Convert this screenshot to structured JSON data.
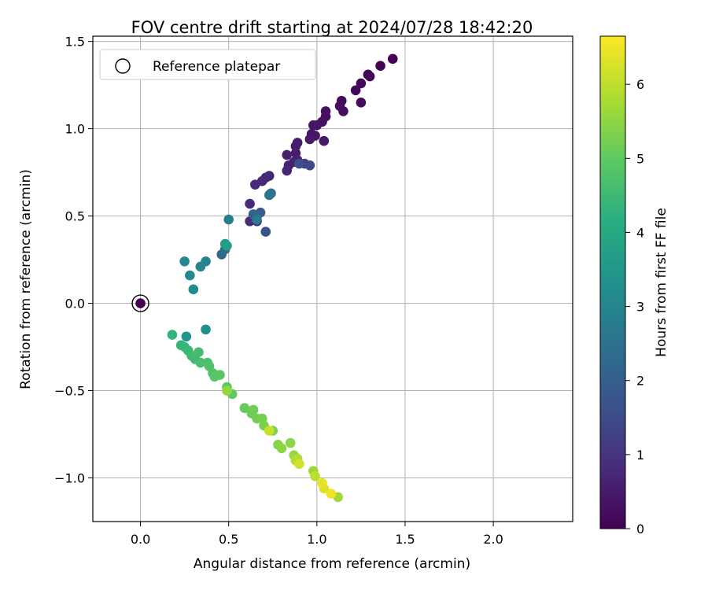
{
  "chart_data": {
    "type": "scatter",
    "title": "FOV centre drift starting at 2024/07/28 18:42:20",
    "xlabel": "Angular distance from reference (arcmin)",
    "ylabel": "Rotation from reference (arcmin)",
    "xlim": [
      -0.27,
      2.45
    ],
    "ylim": [
      -1.25,
      1.53
    ],
    "x_ticks": [
      0.0,
      0.5,
      1.0,
      1.5,
      2.0
    ],
    "x_tick_labels": [
      "0.0",
      "0.5",
      "1.0",
      "1.5",
      "2.0"
    ],
    "y_ticks": [
      -1.0,
      -0.5,
      0.0,
      0.5,
      1.0,
      1.5
    ],
    "y_tick_labels": [
      "−1.0",
      "−0.5",
      "0.0",
      "0.5",
      "1.0",
      "1.5"
    ],
    "grid": true,
    "legend": {
      "placement": "top-left",
      "entries": [
        "Reference platepar"
      ]
    },
    "reference_point": {
      "x": 0.0,
      "y": 0.0
    },
    "colorbar": {
      "label": "Hours from first FF file",
      "colormap": "viridis",
      "range": [
        0,
        6.65
      ],
      "ticks": [
        0,
        1,
        2,
        3,
        4,
        5,
        6
      ],
      "tick_labels": [
        "0",
        "1",
        "2",
        "3",
        "4",
        "5",
        "6"
      ]
    },
    "points": [
      {
        "x": 1.43,
        "y": 1.4,
        "t": 0.02
      },
      {
        "x": 1.36,
        "y": 1.36,
        "t": 0.05
      },
      {
        "x": 1.3,
        "y": 1.3,
        "t": 0.08
      },
      {
        "x": 1.29,
        "y": 1.31,
        "t": 0.1
      },
      {
        "x": 1.25,
        "y": 1.26,
        "t": 0.12
      },
      {
        "x": 1.22,
        "y": 1.22,
        "t": 0.15
      },
      {
        "x": 1.25,
        "y": 1.15,
        "t": 0.18
      },
      {
        "x": 1.14,
        "y": 1.16,
        "t": 0.2
      },
      {
        "x": 1.13,
        "y": 1.13,
        "t": 0.22
      },
      {
        "x": 1.15,
        "y": 1.1,
        "t": 0.25
      },
      {
        "x": 1.05,
        "y": 1.1,
        "t": 0.28
      },
      {
        "x": 1.05,
        "y": 1.07,
        "t": 0.3
      },
      {
        "x": 1.03,
        "y": 1.04,
        "t": 0.32
      },
      {
        "x": 1.0,
        "y": 1.02,
        "t": 0.35
      },
      {
        "x": 0.98,
        "y": 1.02,
        "t": 0.38
      },
      {
        "x": 0.97,
        "y": 0.97,
        "t": 0.4
      },
      {
        "x": 0.99,
        "y": 0.96,
        "t": 0.42
      },
      {
        "x": 0.96,
        "y": 0.94,
        "t": 0.45
      },
      {
        "x": 1.04,
        "y": 0.93,
        "t": 0.48
      },
      {
        "x": 0.89,
        "y": 0.92,
        "t": 0.5
      },
      {
        "x": 0.88,
        "y": 0.9,
        "t": 0.52
      },
      {
        "x": 0.88,
        "y": 0.86,
        "t": 0.55
      },
      {
        "x": 0.83,
        "y": 0.85,
        "t": 0.58
      },
      {
        "x": 0.87,
        "y": 0.81,
        "t": 0.6
      },
      {
        "x": 0.89,
        "y": 0.82,
        "t": 0.62
      },
      {
        "x": 0.84,
        "y": 0.79,
        "t": 0.65
      },
      {
        "x": 0.83,
        "y": 0.76,
        "t": 0.68
      },
      {
        "x": 0.73,
        "y": 0.73,
        "t": 0.7
      },
      {
        "x": 0.71,
        "y": 0.72,
        "t": 0.72
      },
      {
        "x": 0.69,
        "y": 0.7,
        "t": 0.75
      },
      {
        "x": 0.65,
        "y": 0.68,
        "t": 0.78
      },
      {
        "x": 0.62,
        "y": 0.57,
        "t": 0.8
      },
      {
        "x": 0.62,
        "y": 0.47,
        "t": 0.85
      },
      {
        "x": 0.66,
        "y": 0.47,
        "t": 0.9
      },
      {
        "x": 0.93,
        "y": 0.8,
        "t": 1.3
      },
      {
        "x": 0.96,
        "y": 0.79,
        "t": 1.45
      },
      {
        "x": 0.9,
        "y": 0.8,
        "t": 1.6
      },
      {
        "x": 0.71,
        "y": 0.41,
        "t": 1.7
      },
      {
        "x": 0.68,
        "y": 0.52,
        "t": 1.85
      },
      {
        "x": 0.64,
        "y": 0.51,
        "t": 2.0
      },
      {
        "x": 0.66,
        "y": 0.5,
        "t": 2.1
      },
      {
        "x": 0.46,
        "y": 0.28,
        "t": 2.2
      },
      {
        "x": 0.48,
        "y": 0.31,
        "t": 2.35
      },
      {
        "x": 0.74,
        "y": 0.63,
        "t": 2.5
      },
      {
        "x": 0.73,
        "y": 0.62,
        "t": 2.6
      },
      {
        "x": 0.66,
        "y": 0.48,
        "t": 2.7
      },
      {
        "x": 0.5,
        "y": 0.48,
        "t": 2.8
      },
      {
        "x": 0.37,
        "y": 0.24,
        "t": 2.95
      },
      {
        "x": 0.34,
        "y": 0.21,
        "t": 3.0
      },
      {
        "x": 0.25,
        "y": 0.24,
        "t": 3.05
      },
      {
        "x": 0.28,
        "y": 0.16,
        "t": 3.1
      },
      {
        "x": 0.3,
        "y": 0.08,
        "t": 3.2
      },
      {
        "x": 0.37,
        "y": -0.15,
        "t": 3.3
      },
      {
        "x": 0.26,
        "y": -0.19,
        "t": 3.4
      },
      {
        "x": 0.48,
        "y": 0.34,
        "t": 3.55
      },
      {
        "x": 0.49,
        "y": 0.33,
        "t": 3.7
      },
      {
        "x": 0.18,
        "y": -0.18,
        "t": 4.3
      },
      {
        "x": 0.23,
        "y": -0.24,
        "t": 4.35
      },
      {
        "x": 0.25,
        "y": -0.25,
        "t": 4.4
      },
      {
        "x": 0.27,
        "y": -0.27,
        "t": 4.45
      },
      {
        "x": 0.29,
        "y": -0.3,
        "t": 4.5
      },
      {
        "x": 0.31,
        "y": -0.32,
        "t": 4.55
      },
      {
        "x": 0.33,
        "y": -0.28,
        "t": 4.6
      },
      {
        "x": 0.34,
        "y": -0.34,
        "t": 4.65
      },
      {
        "x": 0.38,
        "y": -0.34,
        "t": 4.7
      },
      {
        "x": 0.39,
        "y": -0.36,
        "t": 4.75
      },
      {
        "x": 0.41,
        "y": -0.4,
        "t": 4.8
      },
      {
        "x": 0.42,
        "y": -0.42,
        "t": 4.85
      },
      {
        "x": 0.45,
        "y": -0.41,
        "t": 4.9
      },
      {
        "x": 0.49,
        "y": -0.48,
        "t": 4.95
      },
      {
        "x": 0.52,
        "y": -0.52,
        "t": 5.0
      },
      {
        "x": 0.59,
        "y": -0.6,
        "t": 5.05
      },
      {
        "x": 0.63,
        "y": -0.63,
        "t": 5.1
      },
      {
        "x": 0.64,
        "y": -0.61,
        "t": 5.15
      },
      {
        "x": 0.66,
        "y": -0.66,
        "t": 5.2
      },
      {
        "x": 0.69,
        "y": -0.66,
        "t": 5.25
      },
      {
        "x": 0.7,
        "y": -0.7,
        "t": 5.3
      },
      {
        "x": 0.75,
        "y": -0.73,
        "t": 5.35
      },
      {
        "x": 0.78,
        "y": -0.81,
        "t": 5.4
      },
      {
        "x": 0.8,
        "y": -0.83,
        "t": 5.45
      },
      {
        "x": 0.85,
        "y": -0.8,
        "t": 5.5
      },
      {
        "x": 0.49,
        "y": -0.5,
        "t": 5.55
      },
      {
        "x": 0.87,
        "y": -0.87,
        "t": 5.6
      },
      {
        "x": 0.98,
        "y": -0.96,
        "t": 5.65
      },
      {
        "x": 1.12,
        "y": -1.11,
        "t": 5.7
      },
      {
        "x": 0.89,
        "y": -0.89,
        "t": 5.8
      },
      {
        "x": 0.88,
        "y": -0.9,
        "t": 5.9
      },
      {
        "x": 0.99,
        "y": -0.99,
        "t": 6.0
      },
      {
        "x": 0.73,
        "y": -0.73,
        "t": 6.1
      },
      {
        "x": 0.9,
        "y": -0.92,
        "t": 6.2
      },
      {
        "x": 1.04,
        "y": -1.06,
        "t": 6.3
      },
      {
        "x": 1.03,
        "y": -1.03,
        "t": 6.4
      },
      {
        "x": 1.08,
        "y": -1.09,
        "t": 6.5
      },
      {
        "x": 0.0,
        "y": 0.0,
        "t": 0.0
      }
    ]
  }
}
